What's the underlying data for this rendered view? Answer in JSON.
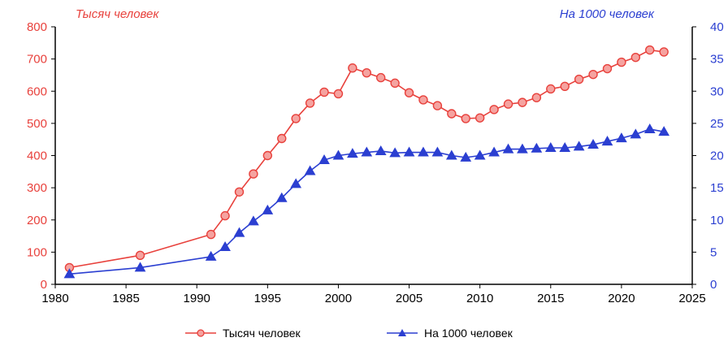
{
  "chart_data": {
    "type": "line",
    "title": "",
    "xlabel": "",
    "y_left_label": "Тысяч человек",
    "y_right_label": "На 1000 человек",
    "xlim": [
      1980,
      2025
    ],
    "x_ticks": [
      1980,
      1985,
      1990,
      1995,
      2000,
      2005,
      2010,
      2015,
      2020,
      2025
    ],
    "y_left_lim": [
      0,
      800
    ],
    "y_left_ticks": [
      0,
      100,
      200,
      300,
      400,
      500,
      600,
      700,
      800
    ],
    "y_right_lim": [
      0,
      40
    ],
    "y_right_ticks": [
      0,
      5,
      10,
      15,
      20,
      25,
      30,
      35,
      40
    ],
    "grid": false,
    "legend_position": "bottom",
    "series": [
      {
        "name": "Тысяч человек",
        "axis": "left",
        "color": "#e8413c",
        "marker": "circle",
        "points": [
          [
            1981,
            52
          ],
          [
            1986,
            90
          ],
          [
            1991,
            155
          ],
          [
            1992,
            213
          ],
          [
            1993,
            287
          ],
          [
            1994,
            343
          ],
          [
            1995,
            400
          ],
          [
            1996,
            453
          ],
          [
            1997,
            515
          ],
          [
            1998,
            563
          ],
          [
            1999,
            597
          ],
          [
            2000,
            592
          ],
          [
            2001,
            672
          ],
          [
            2002,
            657
          ],
          [
            2003,
            642
          ],
          [
            2004,
            625
          ],
          [
            2005,
            595
          ],
          [
            2006,
            573
          ],
          [
            2007,
            555
          ],
          [
            2008,
            530
          ],
          [
            2009,
            515
          ],
          [
            2010,
            517
          ],
          [
            2011,
            543
          ],
          [
            2012,
            560
          ],
          [
            2013,
            565
          ],
          [
            2014,
            580
          ],
          [
            2015,
            607
          ],
          [
            2016,
            615
          ],
          [
            2017,
            637
          ],
          [
            2018,
            652
          ],
          [
            2019,
            670
          ],
          [
            2020,
            690
          ],
          [
            2021,
            705
          ],
          [
            2022,
            728
          ],
          [
            2023,
            722
          ]
        ]
      },
      {
        "name": "На 1000 человек",
        "axis": "right",
        "color": "#2b3fd1",
        "marker": "triangle",
        "points": [
          [
            1981,
            1.6
          ],
          [
            1986,
            2.6
          ],
          [
            1991,
            4.3
          ],
          [
            1992,
            5.8
          ],
          [
            1993,
            8.0
          ],
          [
            1994,
            9.8
          ],
          [
            1995,
            11.5
          ],
          [
            1996,
            13.4
          ],
          [
            1997,
            15.6
          ],
          [
            1998,
            17.6
          ],
          [
            1999,
            19.3
          ],
          [
            2000,
            20.0
          ],
          [
            2001,
            20.3
          ],
          [
            2002,
            20.5
          ],
          [
            2003,
            20.7
          ],
          [
            2004,
            20.4
          ],
          [
            2005,
            20.5
          ],
          [
            2006,
            20.5
          ],
          [
            2007,
            20.5
          ],
          [
            2008,
            20.0
          ],
          [
            2009,
            19.7
          ],
          [
            2010,
            20.0
          ],
          [
            2011,
            20.5
          ],
          [
            2012,
            21.0
          ],
          [
            2013,
            21.0
          ],
          [
            2014,
            21.1
          ],
          [
            2015,
            21.2
          ],
          [
            2016,
            21.2
          ],
          [
            2017,
            21.4
          ],
          [
            2018,
            21.7
          ],
          [
            2019,
            22.2
          ],
          [
            2020,
            22.7
          ],
          [
            2021,
            23.3
          ],
          [
            2022,
            24.1
          ],
          [
            2023,
            23.7
          ]
        ]
      }
    ]
  }
}
